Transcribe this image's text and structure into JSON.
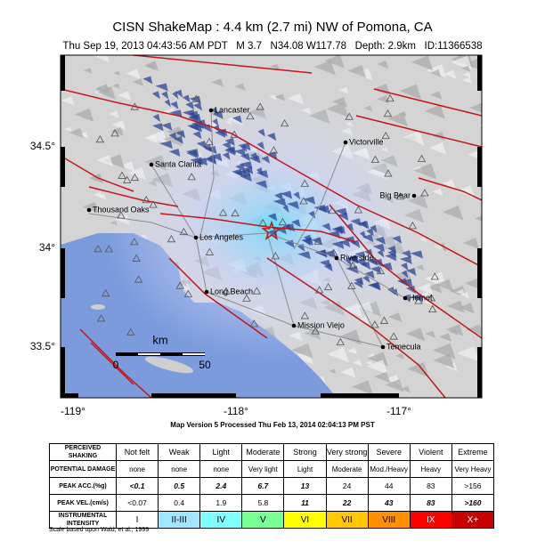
{
  "header": {
    "title": "CISN ShakeMap : 4.4 km (2.7 mi) NW of Pomona, CA",
    "subtitle": "Thu Sep 19, 2013 04:43:56 AM PDT   M 3.7   N34.08 W117.78   Depth: 2.9km   ID:11366538"
  },
  "map": {
    "lat_labels": [
      "34.5°",
      "34°",
      "33.5°"
    ],
    "lon_labels": [
      "-119°",
      "-118°",
      "-117°"
    ],
    "cities": [
      "Lancaster",
      "Victorville",
      "Santa Clarita",
      "Big Bear",
      "Thousand Oaks",
      "Los Angeles",
      "Riverside",
      "Long Beach",
      "Hemet",
      "Mission Viejo",
      "Temecula"
    ],
    "scale": {
      "unit": "km",
      "labels": [
        "0",
        "50"
      ]
    }
  },
  "processed": "Map Version 5 Processed Thu Feb 13, 2014 02:04:13 PM PST",
  "table": {
    "row_labels": [
      "PERCEIVED SHAKING",
      "POTENTIAL DAMAGE",
      "PEAK ACC.(%g)",
      "PEAK VEL.(cm/s)",
      "INSTRUMENTAL INTENSITY"
    ],
    "shaking": [
      "Not felt",
      "Weak",
      "Light",
      "Moderate",
      "Strong",
      "Very strong",
      "Severe",
      "Violent",
      "Extreme"
    ],
    "damage": [
      "none",
      "none",
      "none",
      "Very light",
      "Light",
      "Moderate",
      "Mod./Heavy",
      "Heavy",
      "Very Heavy"
    ],
    "acc": [
      "<0.1",
      "0.5",
      "2.4",
      "6.7",
      "13",
      "24",
      "44",
      "83",
      ">156"
    ],
    "vel": [
      "<0.07",
      "0.4",
      "1.9",
      "5.8",
      "11",
      "22",
      "43",
      "83",
      ">160"
    ],
    "intensity": [
      "I",
      "II-III",
      "IV",
      "V",
      "VI",
      "VII",
      "VIII",
      "IX",
      "X+"
    ]
  },
  "note": "Scale based upon Wald, et al.; 1999"
}
